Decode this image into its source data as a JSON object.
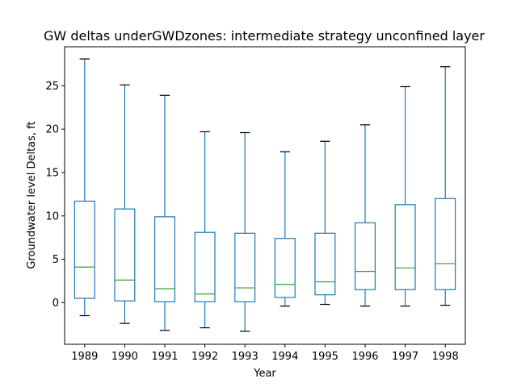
{
  "chart_data": {
    "type": "box",
    "title": "GW deltas underGWDzones: intermediate strategy unconfined layer",
    "xlabel": "Year",
    "ylabel": "Groundwater level Deltas, ft",
    "ylim": [
      -4.8,
      29.5
    ],
    "yticks": [
      0,
      5,
      10,
      15,
      20,
      25
    ],
    "grid": false,
    "colors": {
      "box": "#1f77b4",
      "median": "#2ca02c",
      "whisker": "#1f77b4",
      "cap": "#000000",
      "axes": "#000000"
    },
    "categories": [
      "1989",
      "1990",
      "1991",
      "1992",
      "1993",
      "1994",
      "1995",
      "1996",
      "1997",
      "1998"
    ],
    "boxes": [
      {
        "year": "1989",
        "whislo": -1.5,
        "q1": 0.5,
        "med": 4.1,
        "q3": 11.7,
        "whishi": 28.1
      },
      {
        "year": "1990",
        "whislo": -2.4,
        "q1": 0.2,
        "med": 2.6,
        "q3": 10.8,
        "whishi": 25.1
      },
      {
        "year": "1991",
        "whislo": -3.2,
        "q1": 0.1,
        "med": 1.6,
        "q3": 9.9,
        "whishi": 23.9
      },
      {
        "year": "1992",
        "whislo": -2.9,
        "q1": 0.1,
        "med": 1.0,
        "q3": 8.1,
        "whishi": 19.7
      },
      {
        "year": "1993",
        "whislo": -3.3,
        "q1": 0.1,
        "med": 1.7,
        "q3": 8.0,
        "whishi": 19.6
      },
      {
        "year": "1994",
        "whislo": -0.4,
        "q1": 0.6,
        "med": 2.1,
        "q3": 7.4,
        "whishi": 17.4
      },
      {
        "year": "1995",
        "whislo": -0.2,
        "q1": 0.9,
        "med": 2.4,
        "q3": 8.0,
        "whishi": 18.6
      },
      {
        "year": "1996",
        "whislo": -0.4,
        "q1": 1.5,
        "med": 3.6,
        "q3": 9.2,
        "whishi": 20.5
      },
      {
        "year": "1997",
        "whislo": -0.4,
        "q1": 1.5,
        "med": 4.0,
        "q3": 11.3,
        "whishi": 24.9
      },
      {
        "year": "1998",
        "whislo": -0.3,
        "q1": 1.5,
        "med": 4.5,
        "q3": 12.0,
        "whishi": 27.2
      }
    ]
  }
}
